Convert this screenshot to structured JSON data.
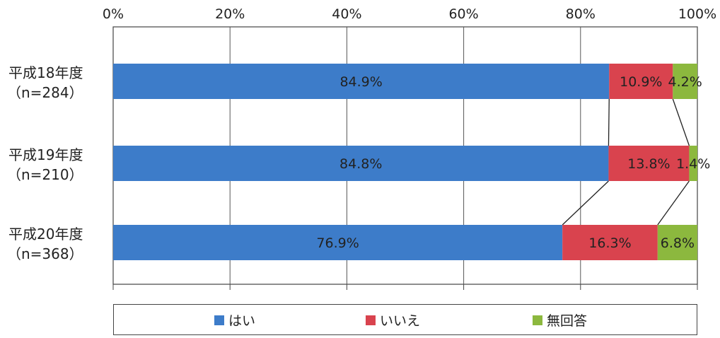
{
  "chart_data": {
    "type": "bar",
    "orientation": "horizontal",
    "stacked": true,
    "percent": true,
    "categories": [
      {
        "label": "平成18年度",
        "n": "（n=284）"
      },
      {
        "label": "平成19年度",
        "n": "（n=210）"
      },
      {
        "label": "平成20年度",
        "n": "（n=368）"
      }
    ],
    "series": [
      {
        "name": "はい",
        "color": "#3d7cc9",
        "values": [
          84.9,
          84.8,
          76.9
        ],
        "labels": [
          "84.9%",
          "84.8%",
          "76.9%"
        ]
      },
      {
        "name": "いいえ",
        "color": "#d9434e",
        "values": [
          10.9,
          13.8,
          16.3
        ],
        "labels": [
          "10.9%",
          "13.8%",
          "16.3%"
        ]
      },
      {
        "name": "無回答",
        "color": "#8cb83e",
        "values": [
          4.2,
          1.4,
          6.8
        ],
        "labels": [
          "4.2%",
          "1.4%",
          "6.8%"
        ]
      }
    ],
    "xlim": [
      0,
      100
    ],
    "ticks": [
      "0%",
      "20%",
      "40%",
      "60%",
      "80%",
      "100%"
    ],
    "tick_values": [
      0,
      20,
      40,
      60,
      80,
      100
    ],
    "grid": true,
    "series_lines": true,
    "legend_position": "bottom"
  }
}
